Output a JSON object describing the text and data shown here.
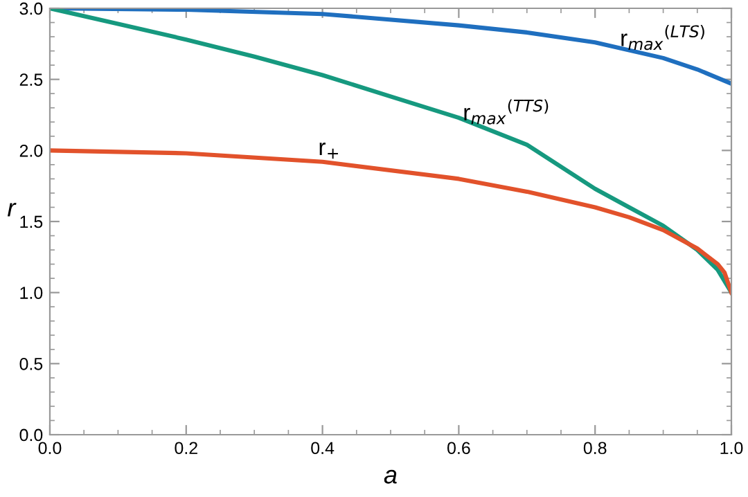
{
  "chart_data": {
    "type": "line",
    "xlabel": "a",
    "ylabel": "r",
    "xlim": [
      0,
      1
    ],
    "ylim": [
      0,
      3
    ],
    "xticks": [
      {
        "value": 0,
        "label": "0.0"
      },
      0.2,
      0.4,
      0.6,
      0.8,
      {
        "value": 1,
        "label": "1.0"
      }
    ],
    "yticks": [
      {
        "value": 0,
        "label": "0.0"
      },
      0.5,
      {
        "value": 1,
        "label": "1.0"
      },
      1.5,
      {
        "value": 2,
        "label": "2.0"
      },
      2.5,
      {
        "value": 3,
        "label": "3.0"
      }
    ],
    "grid": false,
    "legend": false,
    "line_style": "solid",
    "marker": "none",
    "series": [
      {
        "name": "r$_{max}$$^{(LTS)}$",
        "color": "#1f6fbf",
        "x": [
          0,
          0.2,
          0.4,
          0.6,
          0.7,
          0.8,
          0.9,
          0.95,
          1.0
        ],
        "values": [
          3.0,
          2.99,
          2.96,
          2.88,
          2.83,
          2.76,
          2.65,
          2.57,
          2.47
        ]
      },
      {
        "name": "r$_{max}$$^{(TTS)}$",
        "color": "#16997f",
        "x": [
          0,
          0.1,
          0.2,
          0.3,
          0.4,
          0.5,
          0.6,
          0.7,
          0.8,
          0.85,
          0.9,
          0.95,
          0.98,
          1.0
        ],
        "values": [
          3.0,
          2.89,
          2.78,
          2.66,
          2.53,
          2.38,
          2.23,
          2.04,
          1.73,
          1.6,
          1.47,
          1.3,
          1.16,
          1.0
        ]
      },
      {
        "name": "r$_{+}$",
        "color": "#e2522b",
        "x": [
          0,
          0.2,
          0.4,
          0.6,
          0.7,
          0.8,
          0.85,
          0.9,
          0.95,
          0.98,
          0.99,
          1.0
        ],
        "values": [
          2.0,
          1.98,
          1.92,
          1.8,
          1.71,
          1.6,
          1.53,
          1.44,
          1.31,
          1.2,
          1.14,
          1.0
        ]
      }
    ]
  }
}
